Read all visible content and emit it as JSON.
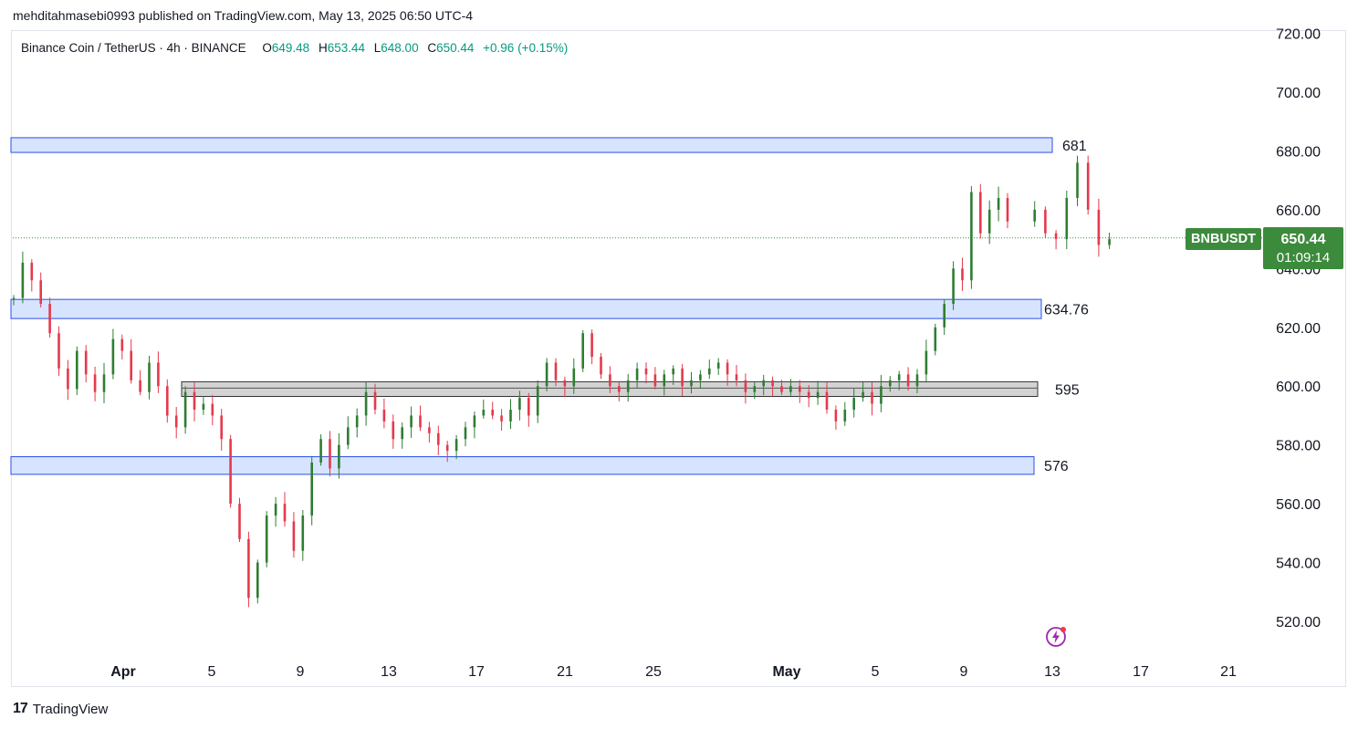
{
  "header": {
    "published_line": "mehditahmasebi0993 published on TradingView.com, May 13, 2025 06:50 UTC-4"
  },
  "legend": {
    "symbol": "Binance Coin / TetherUS · 4h · BINANCE",
    "o_label": "O",
    "o_value": "649.48",
    "h_label": "H",
    "h_value": "653.44",
    "l_label": "L",
    "l_value": "648.00",
    "c_label": "C",
    "c_value": "650.44",
    "change": "+0.96 (+0.15%)"
  },
  "price_tag": {
    "symbol": "BNBUSDT",
    "price": "650.44",
    "countdown": "01:09:14"
  },
  "footer": {
    "brand": "TradingView",
    "logo_mark": "17"
  },
  "colors": {
    "up": "#089981",
    "up_candle": "#2e7d32",
    "down_candle": "#e5394b",
    "zone_blue_fill": "#d6e4ff",
    "zone_blue_stroke": "#2c4ee8",
    "zone_gray_fill": "#d3d3d3",
    "zone_gray_stroke": "#333333",
    "tag_green": "#3c8a3c"
  },
  "chart_data": {
    "type": "candlestick",
    "symbol": "BNBUSDT",
    "timeframe": "4h",
    "y_axis": {
      "ticks": [
        "720.00",
        "700.00",
        "680.00",
        "660.00",
        "640.00",
        "620.00",
        "600.00",
        "580.00",
        "560.00",
        "540.00",
        "520.00"
      ],
      "range": [
        512,
        722
      ]
    },
    "x_axis": {
      "ticks": [
        "Apr",
        "5",
        "9",
        "13",
        "17",
        "21",
        "25",
        "May",
        "5",
        "9",
        "13",
        "17",
        "21"
      ]
    },
    "last_price": 650.44,
    "zones": [
      {
        "label": "681",
        "low": 679.5,
        "high": 684.5,
        "color": "blue",
        "from": "Mar 28",
        "to": "May 13"
      },
      {
        "label": "634.76",
        "low": 623,
        "high": 629.5,
        "color": "blue",
        "from": "Mar 28",
        "to": "May 13"
      },
      {
        "label": "595",
        "low": 596.5,
        "high": 601.5,
        "color": "gray",
        "from": "Apr 2",
        "to": "May 13"
      },
      {
        "label": "576",
        "low": 570,
        "high": 576,
        "color": "blue",
        "from": "Mar 28",
        "to": "May 13"
      }
    ],
    "candles_close_path": [
      [
        0,
        630
      ],
      [
        3,
        642
      ],
      [
        6,
        636
      ],
      [
        9,
        628
      ],
      [
        12,
        618
      ],
      [
        15,
        606
      ],
      [
        18,
        599
      ],
      [
        21,
        612
      ],
      [
        24,
        604
      ],
      [
        27,
        598
      ],
      [
        30,
        604
      ],
      [
        33,
        616
      ],
      [
        36,
        612
      ],
      [
        39,
        602
      ],
      [
        42,
        598
      ],
      [
        45,
        608
      ],
      [
        48,
        600
      ],
      [
        51,
        590
      ],
      [
        54,
        586
      ],
      [
        57,
        598
      ],
      [
        60,
        592
      ],
      [
        63,
        594
      ],
      [
        66,
        590
      ],
      [
        69,
        582
      ],
      [
        72,
        560
      ],
      [
        75,
        548
      ],
      [
        78,
        528
      ],
      [
        81,
        540
      ],
      [
        84,
        556
      ],
      [
        87,
        560
      ],
      [
        90,
        554
      ],
      [
        93,
        544
      ],
      [
        96,
        556
      ],
      [
        99,
        574
      ],
      [
        102,
        582
      ],
      [
        105,
        572
      ],
      [
        108,
        580
      ],
      [
        111,
        586
      ],
      [
        114,
        590
      ],
      [
        117,
        598
      ],
      [
        120,
        592
      ],
      [
        123,
        588
      ],
      [
        126,
        582
      ],
      [
        129,
        586
      ],
      [
        132,
        590
      ],
      [
        135,
        586
      ],
      [
        138,
        584
      ],
      [
        141,
        580
      ],
      [
        144,
        578
      ],
      [
        147,
        582
      ],
      [
        150,
        586
      ],
      [
        153,
        590
      ],
      [
        156,
        592
      ],
      [
        159,
        590
      ],
      [
        162,
        588
      ],
      [
        165,
        592
      ],
      [
        168,
        596
      ],
      [
        171,
        590
      ],
      [
        174,
        600
      ],
      [
        177,
        608
      ],
      [
        180,
        602
      ],
      [
        183,
        600
      ],
      [
        186,
        606
      ],
      [
        189,
        618
      ],
      [
        192,
        610
      ],
      [
        195,
        604
      ],
      [
        198,
        600
      ],
      [
        201,
        598
      ],
      [
        204,
        602
      ],
      [
        207,
        606
      ],
      [
        210,
        604
      ],
      [
        213,
        600
      ],
      [
        216,
        604
      ],
      [
        219,
        606
      ],
      [
        222,
        600
      ],
      [
        225,
        602
      ],
      [
        228,
        604
      ],
      [
        231,
        606
      ],
      [
        234,
        608
      ],
      [
        237,
        604
      ],
      [
        240,
        602
      ],
      [
        243,
        598
      ],
      [
        246,
        600
      ],
      [
        249,
        602
      ],
      [
        252,
        600
      ],
      [
        255,
        598
      ],
      [
        258,
        600
      ],
      [
        261,
        598
      ],
      [
        264,
        596
      ],
      [
        267,
        598
      ],
      [
        270,
        592
      ],
      [
        273,
        588
      ],
      [
        276,
        592
      ],
      [
        279,
        596
      ],
      [
        282,
        598
      ],
      [
        285,
        594
      ],
      [
        288,
        600
      ],
      [
        291,
        602
      ],
      [
        294,
        604
      ],
      [
        297,
        600
      ],
      [
        300,
        604
      ],
      [
        303,
        612
      ],
      [
        306,
        620
      ],
      [
        309,
        628
      ],
      [
        312,
        640
      ],
      [
        315,
        636
      ],
      [
        318,
        666
      ],
      [
        321,
        652
      ],
      [
        324,
        660
      ],
      [
        327,
        664
      ],
      [
        330,
        656
      ],
      [
        333,
        660
      ],
      [
        336,
        652
      ],
      [
        339,
        650
      ],
      [
        342,
        664
      ],
      [
        345,
        676
      ],
      [
        348,
        660
      ],
      [
        351,
        648
      ],
      [
        354,
        650
      ]
    ]
  }
}
